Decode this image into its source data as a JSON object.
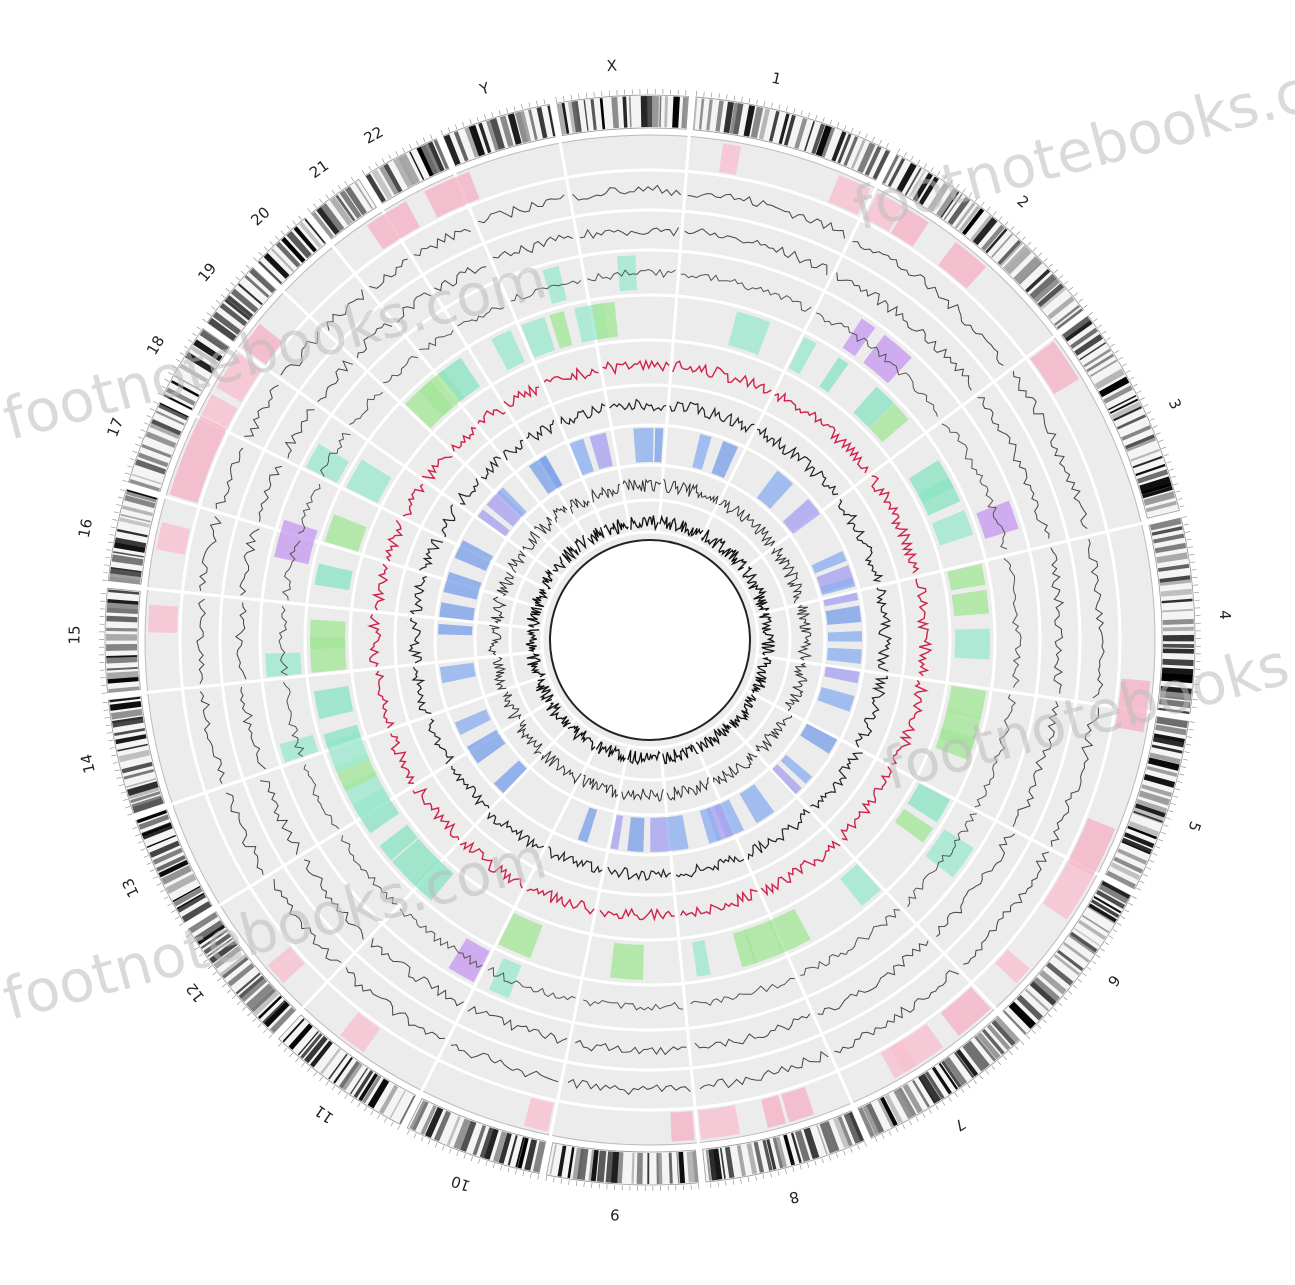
{
  "chromosomes": [
    "1",
    "2",
    "3",
    "4",
    "5",
    "6",
    "7",
    "8",
    "9",
    "10",
    "11",
    "12",
    "13",
    "14",
    "15",
    "16",
    "17",
    "18",
    "19",
    "20",
    "21",
    "22",
    "Y",
    "X"
  ],
  "watermarks": [
    "footnotebooks.com",
    "footnotebooks.com",
    "footnotebooks.com",
    "footnotebooks.com"
  ]
}
